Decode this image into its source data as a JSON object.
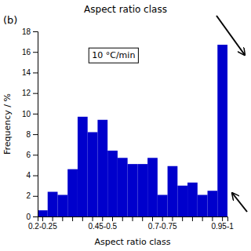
{
  "chart_data": {
    "type": "bar",
    "title": "Aspect ratio class",
    "x_label": "Aspect ratio class",
    "y_label": "Frequency / %",
    "annotations": [
      "(b)",
      "10 °C/min"
    ],
    "categories": [
      "0.2-0.25",
      null,
      null,
      null,
      null,
      null,
      "0.45-0.5",
      null,
      null,
      null,
      null,
      null,
      "0.7-0.75",
      null,
      null,
      null,
      null,
      null,
      "0.95-1"
    ],
    "values": [
      0.6,
      2.4,
      2.1,
      4.6,
      9.7,
      8.2,
      9.4,
      6.4,
      5.7,
      5.1,
      5.1,
      5.7,
      2.1,
      4.9,
      3.0,
      3.3,
      2.1,
      2.5,
      16.7
    ],
    "color": "#0000CC",
    "ylim": [
      0,
      18
    ],
    "yticks": [
      0,
      2,
      4,
      6,
      8,
      10,
      12,
      14,
      16,
      18
    ],
    "grid": false
  }
}
